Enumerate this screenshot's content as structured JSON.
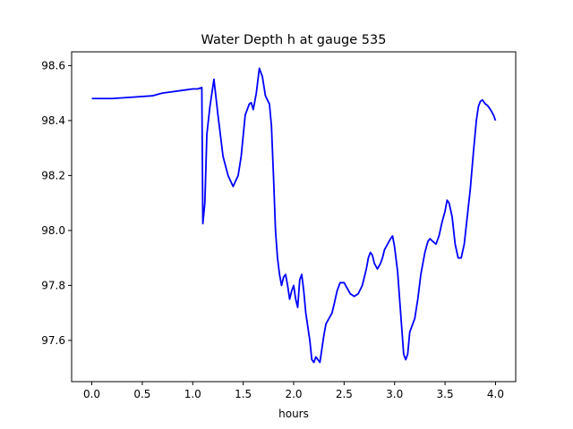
{
  "chart_data": {
    "type": "line",
    "title": "Water Depth h at gauge 535",
    "xlabel": "hours",
    "ylabel": "",
    "xlim": [
      -0.2,
      4.2
    ],
    "ylim": [
      97.45,
      98.65
    ],
    "xticks": [
      0.0,
      0.5,
      1.0,
      1.5,
      2.0,
      2.5,
      3.0,
      3.5,
      4.0
    ],
    "xtick_labels": [
      "0.0",
      "0.5",
      "1.0",
      "1.5",
      "2.0",
      "2.5",
      "3.0",
      "3.5",
      "4.0"
    ],
    "yticks": [
      97.6,
      97.8,
      98.0,
      98.2,
      98.4,
      98.6
    ],
    "ytick_labels": [
      "97.6",
      "97.8",
      "98.0",
      "98.2",
      "98.4",
      "98.6"
    ],
    "grid": false,
    "colors": {
      "line": "#0000ff",
      "axes": "#000000",
      "background": "#ffffff"
    },
    "series": [
      {
        "x": [
          0.0,
          0.2,
          0.4,
          0.6,
          0.7,
          0.8,
          0.9,
          1.0,
          1.05,
          1.09,
          1.1,
          1.12,
          1.14,
          1.17,
          1.21,
          1.25,
          1.3,
          1.35,
          1.4,
          1.45,
          1.48,
          1.52,
          1.56,
          1.58,
          1.6,
          1.63,
          1.66,
          1.69,
          1.72,
          1.76,
          1.78,
          1.8,
          1.82,
          1.84,
          1.86,
          1.88,
          1.9,
          1.92,
          1.94,
          1.96,
          1.98,
          2.0,
          2.02,
          2.04,
          2.06,
          2.08,
          2.1,
          2.12,
          2.14,
          2.16,
          2.18,
          2.2,
          2.22,
          2.24,
          2.26,
          2.28,
          2.3,
          2.32,
          2.35,
          2.38,
          2.4,
          2.43,
          2.46,
          2.5,
          2.53,
          2.56,
          2.6,
          2.64,
          2.68,
          2.72,
          2.74,
          2.76,
          2.78,
          2.8,
          2.83,
          2.86,
          2.88,
          2.9,
          2.93,
          2.96,
          2.98,
          3.0,
          3.03,
          3.06,
          3.09,
          3.11,
          3.13,
          3.15,
          3.2,
          3.23,
          3.26,
          3.3,
          3.33,
          3.35,
          3.38,
          3.41,
          3.44,
          3.47,
          3.5,
          3.52,
          3.54,
          3.57,
          3.6,
          3.63,
          3.66,
          3.69,
          3.72,
          3.75,
          3.78,
          3.81,
          3.83,
          3.85,
          3.87,
          3.88,
          3.9,
          3.92,
          3.95,
          3.98,
          4.0
        ],
        "y": [
          98.48,
          98.48,
          98.485,
          98.49,
          98.5,
          98.505,
          98.51,
          98.515,
          98.515,
          98.52,
          98.025,
          98.1,
          98.35,
          98.45,
          98.55,
          98.42,
          98.27,
          98.2,
          98.16,
          98.2,
          98.27,
          98.42,
          98.46,
          98.465,
          98.44,
          98.5,
          98.59,
          98.56,
          98.49,
          98.46,
          98.38,
          98.2,
          98.0,
          97.9,
          97.84,
          97.8,
          97.83,
          97.84,
          97.8,
          97.75,
          97.78,
          97.8,
          97.75,
          97.72,
          97.82,
          97.84,
          97.78,
          97.7,
          97.65,
          97.6,
          97.53,
          97.52,
          97.54,
          97.53,
          97.52,
          97.57,
          97.62,
          97.66,
          97.68,
          97.7,
          97.73,
          97.78,
          97.81,
          97.81,
          97.79,
          97.77,
          97.76,
          97.77,
          97.8,
          97.86,
          97.9,
          97.92,
          97.91,
          97.88,
          97.86,
          97.88,
          97.9,
          97.93,
          97.95,
          97.97,
          97.98,
          97.94,
          97.85,
          97.7,
          97.55,
          97.53,
          97.55,
          97.63,
          97.68,
          97.75,
          97.84,
          97.92,
          97.96,
          97.97,
          97.96,
          97.95,
          97.98,
          98.03,
          98.07,
          98.11,
          98.1,
          98.05,
          97.95,
          97.9,
          97.9,
          97.95,
          98.05,
          98.15,
          98.28,
          98.4,
          98.45,
          98.47,
          98.475,
          98.47,
          98.46,
          98.455,
          98.44,
          98.42,
          98.4
        ]
      }
    ]
  }
}
